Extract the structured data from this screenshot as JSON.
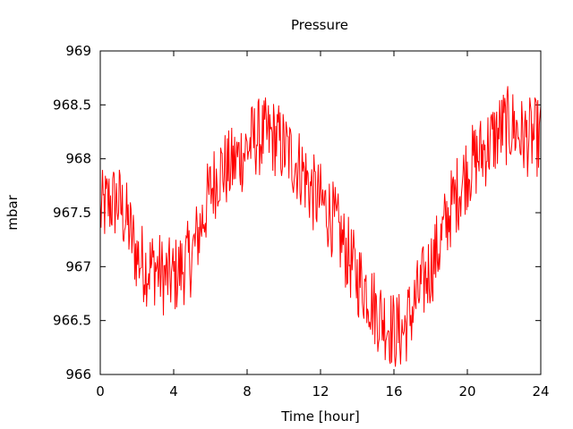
{
  "chart_data": {
    "type": "line",
    "title": "Pressure",
    "xlabel": "Time [hour]",
    "ylabel": "mbar",
    "xlim": [
      0,
      24
    ],
    "ylim": [
      966,
      969
    ],
    "xticks": [
      "0",
      "4",
      "8",
      "12",
      "16",
      "20",
      "24"
    ],
    "yticks": [
      "966",
      "966.5",
      "967",
      "967.5",
      "968",
      "968.5",
      "969"
    ],
    "grid": false,
    "legend": "none",
    "series_color": "#ff0000",
    "series": [
      {
        "x": [
          0,
          0.5,
          1,
          1.5,
          2,
          2.5,
          3,
          3.5,
          4,
          4.5,
          5,
          5.5,
          6,
          6.5,
          7,
          7.5,
          8,
          8.5,
          9,
          9.5,
          10,
          10.5,
          11,
          11.5,
          12,
          12.5,
          13,
          13.5,
          14,
          14.5,
          15,
          15.5,
          16,
          16.5,
          17,
          17.5,
          18,
          18.5,
          19,
          19.5,
          20,
          20.5,
          21,
          21.5,
          22,
          22.5,
          23,
          23.5,
          24
        ],
        "values": [
          967.5,
          967.6,
          967.6,
          967.4,
          967.1,
          967.0,
          967.0,
          966.9,
          966.9,
          967.0,
          967.1,
          967.4,
          967.7,
          967.9,
          967.9,
          968.0,
          968.1,
          968.2,
          968.2,
          968.2,
          968.1,
          968.0,
          967.9,
          967.7,
          967.6,
          967.5,
          967.3,
          967.1,
          966.9,
          966.8,
          966.6,
          966.5,
          966.4,
          966.4,
          966.6,
          966.8,
          967.0,
          967.2,
          967.5,
          967.7,
          967.9,
          968.0,
          968.1,
          968.2,
          968.3,
          968.3,
          968.2,
          968.2,
          968.2
        ]
      }
    ]
  }
}
